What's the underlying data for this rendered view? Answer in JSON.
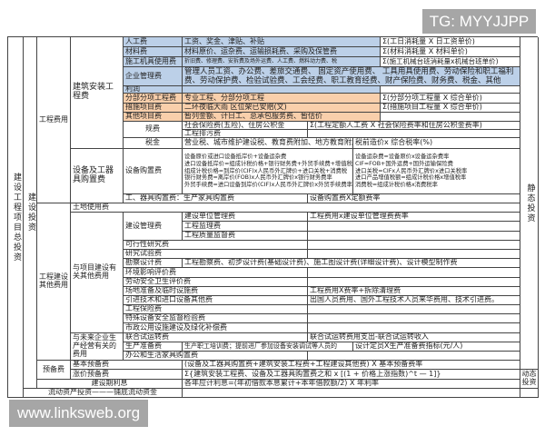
{
  "watermarks": {
    "top_right": "TG: MYYJJPP",
    "bottom_left": "www.linksweb.org"
  },
  "colors": {
    "labor_group": "#bcd0e8",
    "bill_group": "#f9cfab"
  },
  "total": "建设工程项目总投资",
  "construction_investment": "建设投资",
  "static_investment": "静态投资",
  "dynamic_investment": "动态投资",
  "engineering_cost": "工程费用",
  "building_install": "建筑安装工程费",
  "labor": {
    "name": "人工费",
    "desc": "工资、奖金、津贴、补贴",
    "formula": "Σ(工日消耗量 X 日工资单价)"
  },
  "material": {
    "name": "材料费",
    "desc": "材料原价、运杂费、运输损耗费、采购及保管费",
    "formula": "Σ(材料消耗量 X 材料单价)"
  },
  "machinery": {
    "name": "施工机具使用费",
    "desc": "折旧费、修理费、安拆费及场外运费、人工费、燃料动力费、税",
    "formula": "Σ(施工机械台班消耗量x机械台班单价)"
  },
  "enterprise_mgmt": {
    "name": "企业管理费",
    "desc": "管理人员工资、办公费、差旅交通费、 固定资产使用费、 工具用具使用费、劳动保险和职工福利费、劳动保护费、检验试验费、工会经费、职工教育经费、财产保险费、财务费、税金、其他"
  },
  "profit": {
    "name": "利润"
  },
  "sub_item": {
    "name": "分部分项工程费",
    "desc": "专业工程、分部分项工程",
    "formula": "Σ(分部分项工程量 X 综合单价)"
  },
  "measure": {
    "name": "措施项目费",
    "desc": "二环夜临大雨 区位架已安赔(文)",
    "formula": "Σ(措施项目工程量 X 综合单价)"
  },
  "other_item": {
    "name": "其他项目费",
    "desc": "暂列金额、计日工、总承包服务费、暂估价"
  },
  "fees": {
    "name": "规费",
    "desc1": "社会保险费(五险)、住房公积金",
    "formula1": "Σ(工程定额人工费 X 社会保险费率和住房公积金费率)",
    "desc2": "工程排污费"
  },
  "tax": {
    "name": "税金",
    "desc": "营业税、城市维护建设税、教育费附加、地方教育附加",
    "formula": "税前造价x 综合税率(%)"
  },
  "equipment_group": "设备及工器具购置费",
  "equipment": {
    "name": "设备购置费",
    "desc": [
      "设备原价或进口设备抵岸价+设备运杂费",
      "进口设备抵岸价=组成计税价格+银行财务费+外贸手续费+增值税",
      "组成计税价格=到岸价(CIF)x人民币外汇牌价+进口关税+消费税",
      "银行财务费=离岸价(FOB)x人民币外汇牌价x银行财务费率",
      "外贸手续费=进口设备到岸价(CIF)x人民币外汇牌价x外贸手续费率"
    ],
    "formula": [
      "设备运杂费=设备原价x设备运杂费率",
      "CIF=FOB+国外运费+国外运输保险费",
      "进口关税=CIFx人民币外汇牌价x进口关税率",
      "进口产品增值税额=组成计税价格x增值税率",
      "消费税=组成计税价格x消费税率"
    ]
  },
  "tools": {
    "name": "工、器具购置费：生产家具购置费",
    "formula": "设备购置费X定额费率"
  },
  "other_cost": "工程建设其他费用",
  "land": "土地使用费",
  "project_related": "与项目建设有关其他费用",
  "build_mgmt": {
    "name": "建设管理费",
    "sub": [
      "建设单位管理费",
      "工程监理费",
      "工程质量监督费"
    ],
    "formula": "工程费用x建设单位管理费费率"
  },
  "feasibility": "可行性研究费",
  "research": "研究试验费",
  "survey": {
    "name": "勘察设计费",
    "desc": "工程勘察费、初步设计费(基础设计费)、施工图设计费(详细设计费)、设计模型制作费"
  },
  "environment": "环境影响评价费",
  "labor_safety": "劳动安全卫生评价费",
  "site_prep": {
    "name": "场地准备及临时设施费",
    "formula": "工程费用X费率+拆除清理费"
  },
  "import_tech": {
    "name": "引进技术和进口设备其他费",
    "formula": "出国人员费用、国外工程技术人员来华费用、技术引进费。"
  },
  "insurance": "工程保险费",
  "special_equipment": "特殊设备安全监督检验费",
  "municipal": "市政公用设施建设及绿化补偿费",
  "future_related": "与未来企业生产经营有关的费用",
  "trial_run": {
    "name": "联合试运转费",
    "formula": "联合试运转费用支出-联合试运转收入"
  },
  "production_prep": {
    "name": "生产准备费",
    "desc": "生产职工培训费；提前进厂参加设备安装调试等人员的",
    "formula": "设计定员X生产准备费指标(元/人)"
  },
  "office": "办公和生活家具购置费",
  "reserve": "预备费",
  "basic_reserve": {
    "name": "基本预备费",
    "formula": "(设备及工器具购置费+建筑安装工程费+工程建设其他费) X 基本预备费率"
  },
  "price_reserve": {
    "name": "涨价预备费",
    "formula": "Σ{建筑安装工程费、设备及工器具购置费之和 x [(1 + 价格上涨指数)^t — 1]}"
  },
  "interest": {
    "name": "建设期利息",
    "formula": "各年应计利息=(年初借款本息累计+本年借款额/2) X 年利率"
  },
  "working_capital": "流动资产投资———铺底流动资金"
}
